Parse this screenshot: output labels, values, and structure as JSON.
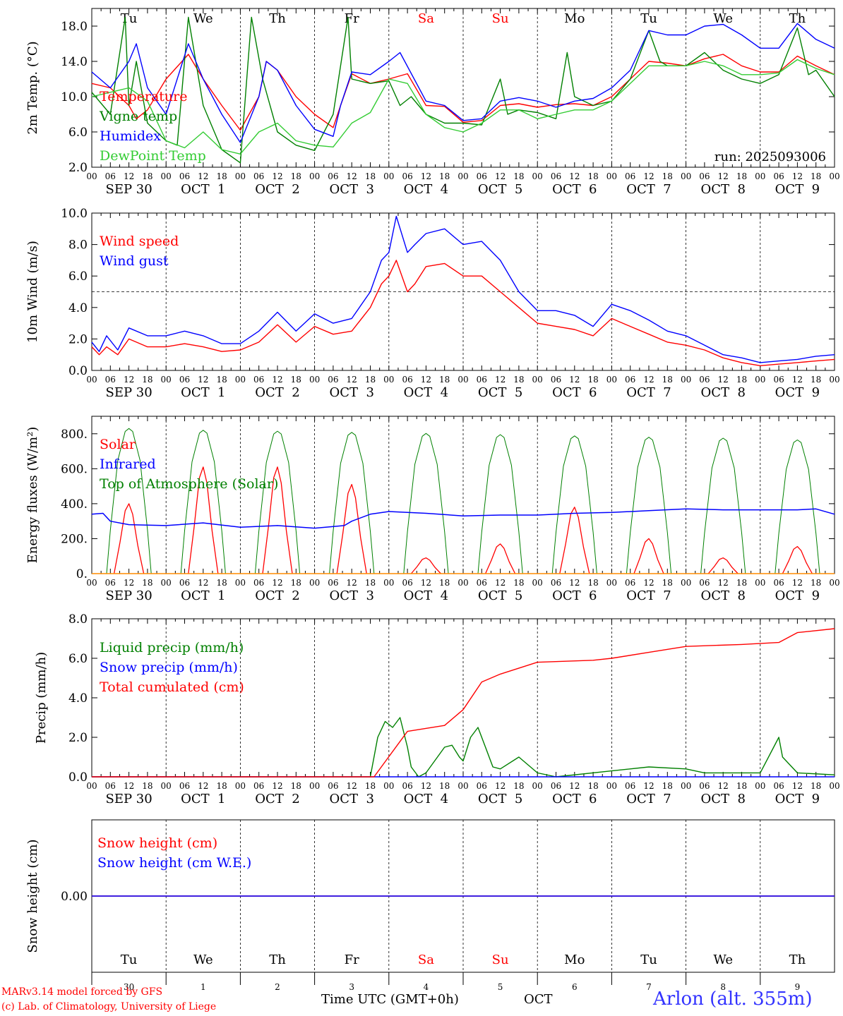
{
  "colors": {
    "red": "#ff0000",
    "blue": "#0000ff",
    "green": "#008000",
    "lightgreen": "#33cc33",
    "black": "#000000"
  },
  "hour_ticks": [
    "00",
    "06",
    "12",
    "18"
  ],
  "days": [
    {
      "abbr": "Tu",
      "weekend": false,
      "month_label": "SEP 30",
      "num": "30"
    },
    {
      "abbr": "We",
      "weekend": false,
      "month_label": "OCT  1",
      "num": "1"
    },
    {
      "abbr": "Th",
      "weekend": false,
      "month_label": "OCT  2",
      "num": "2"
    },
    {
      "abbr": "Fr",
      "weekend": false,
      "month_label": "OCT  3",
      "num": "3"
    },
    {
      "abbr": "Sa",
      "weekend": true,
      "month_label": "OCT  4",
      "num": "4"
    },
    {
      "abbr": "Su",
      "weekend": true,
      "month_label": "OCT  5",
      "num": "5"
    },
    {
      "abbr": "Mo",
      "weekend": false,
      "month_label": "OCT  6",
      "num": "6"
    },
    {
      "abbr": "Tu",
      "weekend": false,
      "month_label": "OCT  7",
      "num": "7"
    },
    {
      "abbr": "We",
      "weekend": false,
      "month_label": "OCT  8",
      "num": "8"
    },
    {
      "abbr": "Th",
      "weekend": false,
      "month_label": "OCT  9",
      "num": "9"
    }
  ],
  "footer": {
    "model": "MARv3.14 model forced by GFS",
    "credit": "(c) Lab. of Climatology, University of Liege",
    "time_label": "Time UTC (GMT+0h)",
    "month": "OCT",
    "station": "Arlon (alt. 355m)"
  },
  "chart_data": [
    {
      "id": "temp",
      "type": "line",
      "ylabel": "2m Temp. (°C)",
      "ylim": [
        2,
        20
      ],
      "yticks": [
        2,
        6,
        10,
        14,
        18
      ],
      "ytick_labels": [
        "2.0",
        "6.0",
        "10.0",
        "14.0",
        "18.0"
      ],
      "run_label": "run: 2025093006",
      "show_day_names": true,
      "series": [
        {
          "name": "Temperature",
          "color": "#ff0000",
          "x": [
            0,
            0.25,
            0.5,
            0.6,
            0.75,
            1,
            1.3,
            1.5,
            1.75,
            2,
            2.25,
            2.35,
            2.5,
            2.75,
            3,
            3.25,
            3.35,
            3.5,
            3.75,
            4,
            4.25,
            4.5,
            4.75,
            5,
            5.25,
            5.5,
            5.75,
            6,
            6.25,
            6.5,
            6.75,
            7,
            7.25,
            7.5,
            7.75,
            8,
            8.25,
            8.5,
            8.75,
            9,
            9.25,
            9.5,
            9.75,
            10
          ],
          "values": [
            11.5,
            11,
            9,
            7.5,
            8.5,
            12,
            14.8,
            12,
            9,
            6.2,
            10,
            14,
            13,
            10,
            8,
            6.5,
            9,
            12.6,
            11.5,
            12,
            12.6,
            9,
            8.9,
            7.1,
            7.3,
            9,
            9.2,
            8.8,
            9.1,
            9.2,
            9,
            10,
            12,
            14,
            13.8,
            13.5,
            14.3,
            14.8,
            13.5,
            12.8,
            12.8,
            14.6,
            13.5,
            12.5
          ]
        },
        {
          "name": "Vigne temp",
          "color": "#008000",
          "x": [
            0,
            0.25,
            0.45,
            0.5,
            0.6,
            0.75,
            1,
            1.15,
            1.3,
            1.5,
            1.75,
            2,
            2.15,
            2.3,
            2.5,
            2.75,
            3,
            3.25,
            3.45,
            3.5,
            3.75,
            4,
            4.15,
            4.3,
            4.5,
            4.75,
            5,
            5.25,
            5.5,
            5.6,
            5.75,
            6,
            6.25,
            6.4,
            6.5,
            6.75,
            7,
            7.25,
            7.5,
            7.65,
            7.75,
            8,
            8.25,
            8.5,
            8.75,
            9,
            9.25,
            9.5,
            9.65,
            9.75,
            10
          ],
          "values": [
            10.5,
            8,
            19,
            9,
            14,
            7,
            5,
            4.5,
            19,
            9,
            4,
            2.5,
            19,
            12,
            6,
            4.5,
            3.9,
            8,
            19,
            12,
            11.5,
            11.8,
            9,
            10,
            8,
            7,
            7,
            6.8,
            12,
            8,
            8.5,
            8.2,
            7.5,
            15,
            10,
            9,
            9.5,
            12,
            17.5,
            14,
            13.5,
            13.5,
            15,
            13,
            12,
            11.5,
            12.5,
            17.8,
            12.5,
            13,
            10
          ]
        },
        {
          "name": "Humidex",
          "color": "#0000ff",
          "x": [
            0,
            0.25,
            0.5,
            0.6,
            0.75,
            1,
            1.3,
            1.5,
            1.75,
            2,
            2.25,
            2.35,
            2.5,
            2.75,
            3,
            3.25,
            3.35,
            3.5,
            3.75,
            4,
            4.15,
            4.5,
            4.75,
            5,
            5.25,
            5.5,
            5.75,
            6,
            6.25,
            6.5,
            6.75,
            7,
            7.25,
            7.5,
            7.75,
            8,
            8.25,
            8.5,
            8.75,
            9,
            9.25,
            9.5,
            9.75,
            10
          ],
          "values": [
            12.8,
            11,
            14,
            16,
            11,
            8,
            16,
            12,
            8,
            4.8,
            10,
            14,
            13,
            9,
            6.3,
            5.5,
            9,
            12.8,
            12.5,
            14,
            15,
            9.5,
            9,
            7.3,
            7.5,
            9.5,
            9.9,
            9.5,
            8.8,
            9.5,
            9.8,
            11,
            13,
            17.5,
            17,
            17,
            18,
            18.2,
            17,
            15.5,
            15.5,
            18.3,
            16.5,
            15.5
          ]
        },
        {
          "name": "DewPoint Temp",
          "color": "#33cc33",
          "x": [
            0,
            0.25,
            0.5,
            0.75,
            1,
            1.25,
            1.5,
            1.75,
            2,
            2.25,
            2.5,
            2.75,
            3,
            3.25,
            3.5,
            3.75,
            4,
            4.25,
            4.5,
            4.75,
            5,
            5.25,
            5.5,
            5.75,
            6,
            6.25,
            6.5,
            6.75,
            7,
            7.25,
            7.5,
            7.75,
            8,
            8.25,
            8.5,
            8.75,
            9,
            9.25,
            9.5,
            9.75,
            10
          ],
          "values": [
            10,
            10.5,
            11,
            9.5,
            5,
            4.2,
            6,
            4,
            3.5,
            6,
            7,
            5,
            4.5,
            4.3,
            7,
            8.2,
            12,
            11.5,
            8,
            6.5,
            6,
            7,
            8.5,
            8.5,
            7.5,
            8,
            8.5,
            8.5,
            9.5,
            11.5,
            13.5,
            13.5,
            13.5,
            14,
            13.5,
            12.5,
            12.5,
            12.7,
            14.2,
            13.2,
            12.5
          ]
        }
      ]
    },
    {
      "id": "wind",
      "type": "line",
      "ylabel": "10m Wind (m/s)",
      "ylim": [
        0,
        10
      ],
      "yticks": [
        0,
        2,
        4,
        6,
        8,
        10
      ],
      "ytick_labels": [
        "0.0",
        "2.0",
        "4.0",
        "6.0",
        "8.0",
        "10.0"
      ],
      "reference_line": 5,
      "series": [
        {
          "name": "Wind speed",
          "color": "#ff0000",
          "x": [
            0,
            0.1,
            0.2,
            0.35,
            0.5,
            0.75,
            1,
            1.25,
            1.5,
            1.75,
            2,
            2.25,
            2.5,
            2.75,
            3,
            3.25,
            3.5,
            3.75,
            3.9,
            4,
            4.1,
            4.25,
            4.35,
            4.5,
            4.75,
            5,
            5.25,
            5.5,
            5.75,
            6,
            6.25,
            6.5,
            6.75,
            7,
            7.25,
            7.5,
            7.75,
            8,
            8.25,
            8.5,
            8.75,
            9,
            9.25,
            9.5,
            9.75,
            10
          ],
          "values": [
            1.5,
            1,
            1.5,
            1,
            2,
            1.5,
            1.5,
            1.7,
            1.5,
            1.2,
            1.3,
            1.8,
            2.9,
            1.8,
            2.8,
            2.3,
            2.5,
            4,
            5.5,
            6,
            7,
            5,
            5.5,
            6.6,
            6.8,
            6,
            6,
            5,
            4,
            3,
            2.8,
            2.6,
            2.2,
            3.3,
            2.8,
            2.3,
            1.8,
            1.6,
            1.3,
            0.8,
            0.5,
            0.3,
            0.4,
            0.5,
            0.6,
            0.7
          ]
        },
        {
          "name": "Wind gust",
          "color": "#0000ff",
          "x": [
            0,
            0.1,
            0.2,
            0.35,
            0.5,
            0.75,
            1,
            1.25,
            1.5,
            1.75,
            2,
            2.25,
            2.5,
            2.75,
            3,
            3.25,
            3.5,
            3.75,
            3.9,
            4,
            4.1,
            4.25,
            4.35,
            4.5,
            4.75,
            5,
            5.25,
            5.5,
            5.75,
            6,
            6.25,
            6.5,
            6.75,
            7,
            7.25,
            7.5,
            7.75,
            8,
            8.25,
            8.5,
            8.75,
            9,
            9.25,
            9.5,
            9.75,
            10
          ],
          "values": [
            1.8,
            1.2,
            2.2,
            1.3,
            2.7,
            2.2,
            2.2,
            2.5,
            2.2,
            1.7,
            1.7,
            2.5,
            3.7,
            2.5,
            3.6,
            3,
            3.3,
            5,
            7,
            7.5,
            9.8,
            7.5,
            8,
            8.7,
            9,
            8,
            8.2,
            7,
            5,
            3.8,
            3.8,
            3.5,
            2.8,
            4.2,
            3.8,
            3.2,
            2.5,
            2.2,
            1.6,
            1,
            0.8,
            0.5,
            0.6,
            0.7,
            0.9,
            1
          ]
        }
      ]
    },
    {
      "id": "energy",
      "type": "line",
      "ylabel": "Energy fluxes (W/m²)",
      "ylim": [
        0,
        900
      ],
      "yticks": [
        0,
        200,
        400,
        600,
        800
      ],
      "ytick_labels": [
        "0.",
        "200.",
        "400.",
        "600.",
        "800."
      ],
      "solar_peaks": [
        400,
        610,
        610,
        510,
        90,
        170,
        380,
        200,
        90,
        155
      ],
      "toa_peaks": [
        830,
        820,
        815,
        808,
        802,
        795,
        788,
        780,
        775,
        765
      ],
      "infrared": {
        "x": [
          0,
          0.15,
          0.25,
          0.5,
          1,
          1.5,
          2,
          2.5,
          3,
          3.4,
          3.5,
          3.75,
          4,
          4.5,
          5,
          5.5,
          6,
          6.5,
          7,
          7.5,
          8,
          8.5,
          9,
          9.5,
          9.75,
          10
        ],
        "values": [
          340,
          345,
          300,
          280,
          275,
          290,
          265,
          275,
          260,
          275,
          300,
          340,
          355,
          345,
          330,
          335,
          335,
          345,
          350,
          360,
          370,
          365,
          365,
          365,
          370,
          340
        ]
      },
      "series": [
        {
          "name": "Solar",
          "color": "#ff0000"
        },
        {
          "name": "Infrared",
          "color": "#0000ff"
        },
        {
          "name": "Top of Atmosphere (Solar)",
          "color": "#008000"
        }
      ]
    },
    {
      "id": "precip",
      "type": "line",
      "ylabel": "Precip (mm/h)",
      "ylim": [
        0,
        8
      ],
      "yticks": [
        0,
        2,
        4,
        6,
        8
      ],
      "ytick_labels": [
        "0.0",
        "2.0",
        "4.0",
        "6.0",
        "8.0"
      ],
      "series": [
        {
          "name": "Liquid precip (mm/h)",
          "color": "#008000",
          "x": [
            0,
            3.75,
            3.85,
            3.95,
            4.05,
            4.15,
            4.25,
            4.3,
            4.4,
            4.5,
            4.75,
            4.85,
            4.95,
            5,
            5.1,
            5.2,
            5.3,
            5.4,
            5.5,
            5.75,
            6,
            6.25,
            7,
            7.5,
            8,
            8.25,
            9,
            9.25,
            9.3,
            9.5,
            10
          ],
          "values": [
            0,
            0,
            2,
            2.8,
            2.5,
            3,
            1.5,
            0.5,
            0,
            0.2,
            1.5,
            1.6,
            1,
            0.8,
            2,
            2.5,
            1.5,
            0.5,
            0.4,
            1,
            0.2,
            0,
            0.3,
            0.5,
            0.4,
            0.2,
            0.2,
            2,
            1,
            0.2,
            0.1
          ]
        },
        {
          "name": "Snow precip (mm/h)",
          "color": "#0000ff",
          "x": [
            0,
            10
          ],
          "values": [
            0,
            0
          ]
        },
        {
          "name": "Total cumulated (cm)",
          "color": "#ff0000",
          "x": [
            0,
            3.8,
            4.25,
            4.75,
            5,
            5.25,
            5.5,
            6,
            6.75,
            7,
            7.5,
            8,
            8.75,
            9.25,
            9.5,
            10
          ],
          "values": [
            0,
            0,
            2.3,
            2.6,
            3.4,
            4.8,
            5.2,
            5.8,
            5.9,
            6.0,
            6.3,
            6.6,
            6.7,
            6.8,
            7.3,
            7.5
          ]
        }
      ]
    },
    {
      "id": "snow",
      "type": "line",
      "ylabel": "Snow height (cm)",
      "ylim": [
        -1,
        1
      ],
      "yticks": [
        0
      ],
      "ytick_labels": [
        "0.00"
      ],
      "series": [
        {
          "name": "Snow height (cm)",
          "color": "#ff0000",
          "x": [
            0,
            10
          ],
          "values": [
            0,
            0
          ]
        },
        {
          "name": "Snow height (cm W.E.)",
          "color": "#0000ff",
          "x": [
            0,
            10
          ],
          "values": [
            0,
            0
          ]
        }
      ]
    }
  ]
}
